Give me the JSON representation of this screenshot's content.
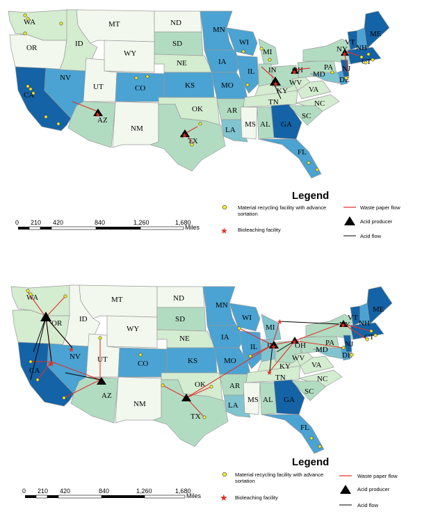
{
  "colors": {
    "very_light": "#f2f8ee",
    "light": "#d4ecd0",
    "mid_light": "#b2dcc2",
    "mid": "#7fc4cf",
    "blue": "#4aa3d2",
    "dark": "#1463a6",
    "waste_flow": "#e0312c",
    "recycler_fill": "#f5ec1e",
    "bioleach": "#e22a22"
  },
  "states": [
    "WA",
    "OR",
    "CA",
    "NV",
    "ID",
    "MT",
    "WY",
    "UT",
    "AZ",
    "CO",
    "NM",
    "ND",
    "SD",
    "NE",
    "KS",
    "OK",
    "TX",
    "MN",
    "IA",
    "MO",
    "AR",
    "LA",
    "WI",
    "IL",
    "MI",
    "IN",
    "KY",
    "TN",
    "MS",
    "AL",
    "GA",
    "FL",
    "OH",
    "WV",
    "VA",
    "NC",
    "SC",
    "PA",
    "NY",
    "MD",
    "DE",
    "NJ",
    "VT",
    "NH",
    "ME",
    "CT"
  ],
  "legend": {
    "title": "Legend",
    "recycling": "Material recycling facility with advance",
    "recycling_line2": "sortation",
    "bioleaching": "Bioleaching facility",
    "waste_flow": "Waste paper flow",
    "acid_producer": "Acid producer",
    "acid_flow": "Acid flow"
  },
  "scale": {
    "ticks": [
      "0",
      "210",
      "420",
      "840",
      "1,260",
      "1,680"
    ],
    "unit": "Miles"
  },
  "map_top": {
    "acid_producers": [
      "AZ",
      "TX",
      "IN",
      "OH",
      "NY"
    ],
    "bioleaching_sites": [
      "AZ",
      "TX",
      "IN",
      "OH",
      "NY"
    ]
  },
  "map_bottom": {
    "acid_producers": [
      "OR",
      "AZ",
      "TX",
      "IN",
      "OH",
      "NY"
    ],
    "bioleaching_sites": [
      "NV",
      "CA",
      "TN",
      "IN",
      "OH",
      "MI",
      "NY"
    ]
  }
}
